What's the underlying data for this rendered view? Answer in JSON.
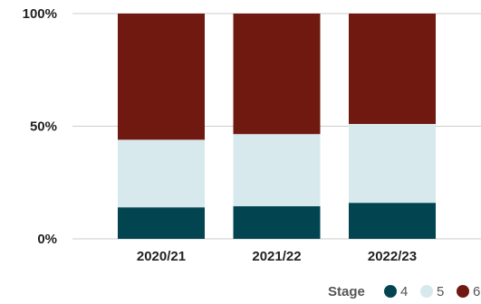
{
  "chart_data": {
    "type": "bar",
    "stacked": true,
    "normalized": true,
    "categories": [
      "2020/21",
      "2021/22",
      "2022/23"
    ],
    "series": [
      {
        "name": "4",
        "color": "#024550",
        "values": [
          14,
          14.5,
          16
        ]
      },
      {
        "name": "5",
        "color": "#d7e9ec",
        "values": [
          30,
          32,
          35
        ]
      },
      {
        "name": "6",
        "color": "#6f1910",
        "values": [
          56,
          53.5,
          49
        ]
      }
    ],
    "ylim": [
      0,
      100
    ],
    "yticks": [
      {
        "value": 0,
        "label": "0%"
      },
      {
        "value": 50,
        "label": "50%"
      },
      {
        "value": 100,
        "label": "100%"
      }
    ],
    "legend": {
      "title": "Stage",
      "position": "bottom-right"
    },
    "grid": true
  }
}
